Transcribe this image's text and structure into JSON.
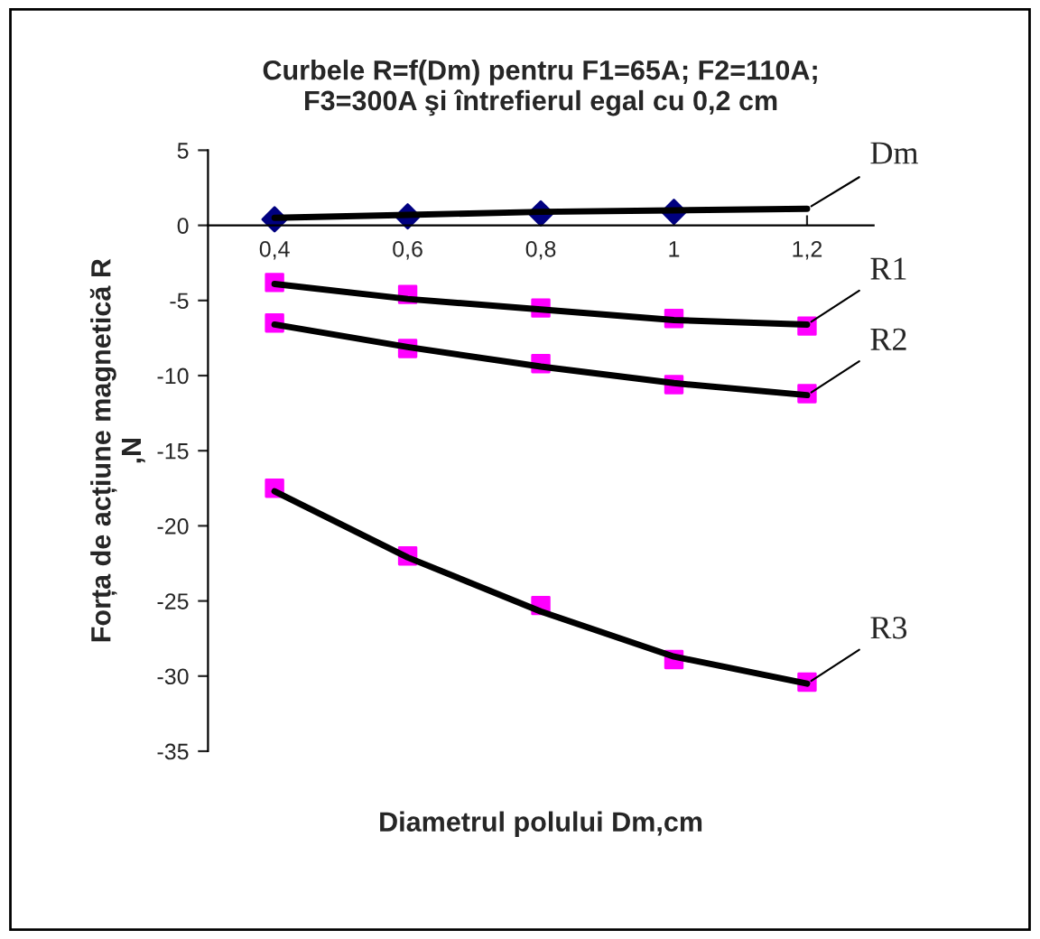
{
  "chart_data": {
    "type": "line",
    "title": "Curbele R=f(Dm) pentru F1=65A; F2=110A;\nF3=300A şi întrefierul egal cu 0,2 cm",
    "xlabel": "Diametrul polului Dm,cm",
    "ylabel": "Forța de acțiune magnetică R\n,N",
    "categories": [
      "0,4",
      "0,6",
      "0,8",
      "1",
      "1,2"
    ],
    "series": [
      {
        "type": "scatter",
        "color": "#000080",
        "marker": "diamond",
        "values": [
          0.4,
          0.6,
          0.8,
          0.9,
          null
        ]
      },
      {
        "type": "scatter",
        "color": "#ff00ff",
        "marker": "square",
        "values": [
          -3.8,
          -4.6,
          -5.5,
          -6.2,
          -6.7
        ]
      },
      {
        "type": "scatter",
        "color": "#ff00ff",
        "marker": "square",
        "values": [
          -6.5,
          -8.2,
          -9.2,
          -10.6,
          -11.2
        ]
      },
      {
        "type": "scatter",
        "color": "#ff00ff",
        "marker": "square",
        "values": [
          -17.5,
          -22.0,
          -25.3,
          -28.9,
          -30.4
        ]
      },
      {
        "color": "#000000",
        "marker": "none",
        "line_style": "solid",
        "values": [
          0.5,
          0.7,
          0.9,
          1.0,
          1.1
        ]
      },
      {
        "color": "#000000",
        "marker": "none",
        "line_style": "solid",
        "values": [
          -3.9,
          -4.9,
          -5.6,
          -6.3,
          -6.6
        ]
      },
      {
        "color": "#000000",
        "marker": "none",
        "line_style": "solid",
        "values": [
          -6.6,
          -8.1,
          -9.4,
          -10.5,
          -11.3
        ]
      },
      {
        "color": "#000000",
        "marker": "none",
        "line_style": "solid",
        "values": [
          -17.7,
          -22.1,
          -25.7,
          -28.7,
          -30.5
        ]
      }
    ],
    "annotations": [
      {
        "text": "Dm",
        "x": "1,2",
        "y": 1.1
      },
      {
        "text": "R1",
        "x": "1,2",
        "y": -6.6
      },
      {
        "text": "R2",
        "x": "1,2",
        "y": -11.3
      },
      {
        "text": "R3",
        "x": "1,2",
        "y": -30.5
      }
    ],
    "ylim": [
      -35,
      5
    ],
    "yticks": [
      -35,
      -30,
      -25,
      -20,
      -15,
      -10,
      -5,
      0,
      5
    ],
    "grid": false,
    "legend": false
  }
}
